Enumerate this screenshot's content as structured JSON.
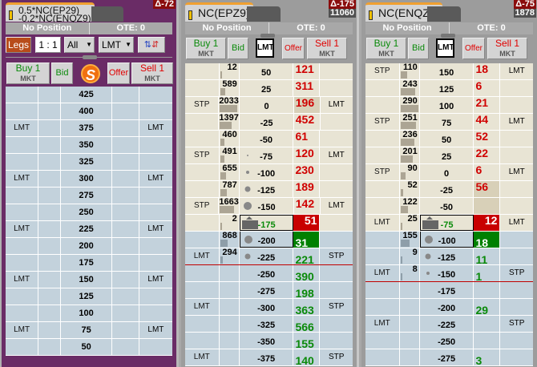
{
  "colors": {
    "ask_bg": "#e8e4d4",
    "bid_bg": "#c3d2dc",
    "ask_text": "#d00000",
    "bid_text": "#0a8a0a",
    "best_ask_bg": "#c80000",
    "best_bid_bg": "#008000"
  },
  "panels": [
    {
      "tab_lines": [
        "0.5*NC(EP29)",
        "-0.2*NC(ENQZ9)"
      ],
      "delta": "Δ-72",
      "position": "No Position",
      "ote": "OTE: 0",
      "legs_label": "Legs",
      "ratio": "1 : 1",
      "filter": "All",
      "order_type": "LMT",
      "spread_icon": "swap-arrows-icon",
      "buy": "Buy 1",
      "buy_sub": "MKT",
      "bid": "Bid",
      "offer": "Offer",
      "sell": "Sell 1",
      "sell_sub": "MKT",
      "center_icon": "s-logo-icon",
      "rows": [
        {
          "p": "425"
        },
        {
          "p": "400"
        },
        {
          "p": "375",
          "l": "LMT",
          "r": "LMT"
        },
        {
          "p": "350"
        },
        {
          "p": "325"
        },
        {
          "p": "300",
          "l": "LMT",
          "r": "LMT"
        },
        {
          "p": "275"
        },
        {
          "p": "250"
        },
        {
          "p": "225",
          "l": "LMT",
          "r": "LMT"
        },
        {
          "p": "200"
        },
        {
          "p": "175"
        },
        {
          "p": "150",
          "l": "LMT",
          "r": "LMT"
        },
        {
          "p": "125"
        },
        {
          "p": "100"
        },
        {
          "p": "75",
          "l": "LMT",
          "r": "LMT"
        },
        {
          "p": "50"
        }
      ]
    },
    {
      "tab": "NC(EPZ9)",
      "delta": "Δ-175",
      "count": "11060",
      "position": "No Position",
      "ote": "OTE: 0",
      "order_type": "LMT",
      "buy": "Buy 1",
      "buy_sub": "MKT",
      "bid": "Bid",
      "offer": "Offer",
      "sell": "Sell 1",
      "sell_sub": "MKT",
      "inside_index": 9,
      "line_after": 11,
      "rows": [
        {
          "p": "50",
          "v": "12",
          "s": "121"
        },
        {
          "p": "25",
          "v": "589",
          "s": "311"
        },
        {
          "p": "0",
          "l": "STP",
          "v": "2033",
          "s": "196",
          "hl": true,
          "r": "LMT"
        },
        {
          "p": "-25",
          "v": "1397",
          "s": "452"
        },
        {
          "p": "-50",
          "v": "460",
          "s": "61"
        },
        {
          "p": "-75",
          "l": "STP",
          "v": "491",
          "d": 1,
          "s": "120",
          "r": "LMT"
        },
        {
          "p": "-100",
          "v": "655",
          "d": 2,
          "s": "230"
        },
        {
          "p": "-125",
          "v": "787",
          "d": 3,
          "s": "189"
        },
        {
          "p": "-150",
          "l": "STP",
          "v": "1663",
          "d": 4,
          "s": "142",
          "r": "LMT"
        },
        {
          "p": "-175",
          "v": "2",
          "s": "51",
          "tri": true
        },
        {
          "p": "-200",
          "v": "868",
          "d": 4,
          "s": "31",
          "box": true
        },
        {
          "p": "-225",
          "l": "LMT",
          "v": "294",
          "d": 3,
          "s": "221",
          "r": "STP"
        },
        {
          "p": "-250",
          "s": "390"
        },
        {
          "p": "-275",
          "s": "198"
        },
        {
          "p": "-300",
          "l": "LMT",
          "s": "363",
          "r": "STP"
        },
        {
          "p": "-325",
          "s": "566"
        },
        {
          "p": "-350",
          "s": "155"
        },
        {
          "p": "-375",
          "l": "LMT",
          "s": "140",
          "r": "STP"
        }
      ]
    },
    {
      "tab": "NC(ENQZ9)",
      "delta": "Δ-75",
      "count": "1878",
      "position": "No Position",
      "ote": "OTE: 0",
      "order_type": "LMT",
      "buy": "Buy 1",
      "buy_sub": "MKT",
      "bid": "Bid",
      "offer": "Offer",
      "sell": "Sell 1",
      "sell_sub": "MKT",
      "inside_index": 9,
      "line_after": 12,
      "rows": [
        {
          "p": "150",
          "l": "STP",
          "v": "110",
          "s": "18",
          "r": "LMT"
        },
        {
          "p": "125",
          "v": "243",
          "s": "6"
        },
        {
          "p": "100",
          "v": "290",
          "s": "21"
        },
        {
          "p": "75",
          "l": "STP",
          "v": "251",
          "s": "44",
          "r": "LMT"
        },
        {
          "p": "50",
          "v": "236",
          "s": "52"
        },
        {
          "p": "25",
          "v": "201",
          "s": "22"
        },
        {
          "p": "0",
          "l": "STP",
          "v": "90",
          "s": "6",
          "r": "LMT"
        },
        {
          "p": "-25",
          "v": "52",
          "s": "56",
          "hl": true
        },
        {
          "p": "-50",
          "v": "122",
          "hl": true
        },
        {
          "p": "-75",
          "l": "LMT",
          "v": "25",
          "s": "12",
          "r": "LMT",
          "tri": true
        },
        {
          "p": "-100",
          "v": "155",
          "d": 4,
          "s": "18",
          "box": true
        },
        {
          "p": "-125",
          "v": "9",
          "d": 3,
          "s": "11"
        },
        {
          "p": "-150",
          "l": "LMT",
          "v": "8",
          "d": 2,
          "s": "1",
          "r": "STP"
        },
        {
          "p": "-175"
        },
        {
          "p": "-200",
          "s": "29"
        },
        {
          "p": "-225",
          "l": "LMT",
          "r": "STP"
        },
        {
          "p": "-250"
        },
        {
          "p": "-275",
          "s": "3"
        }
      ]
    }
  ]
}
